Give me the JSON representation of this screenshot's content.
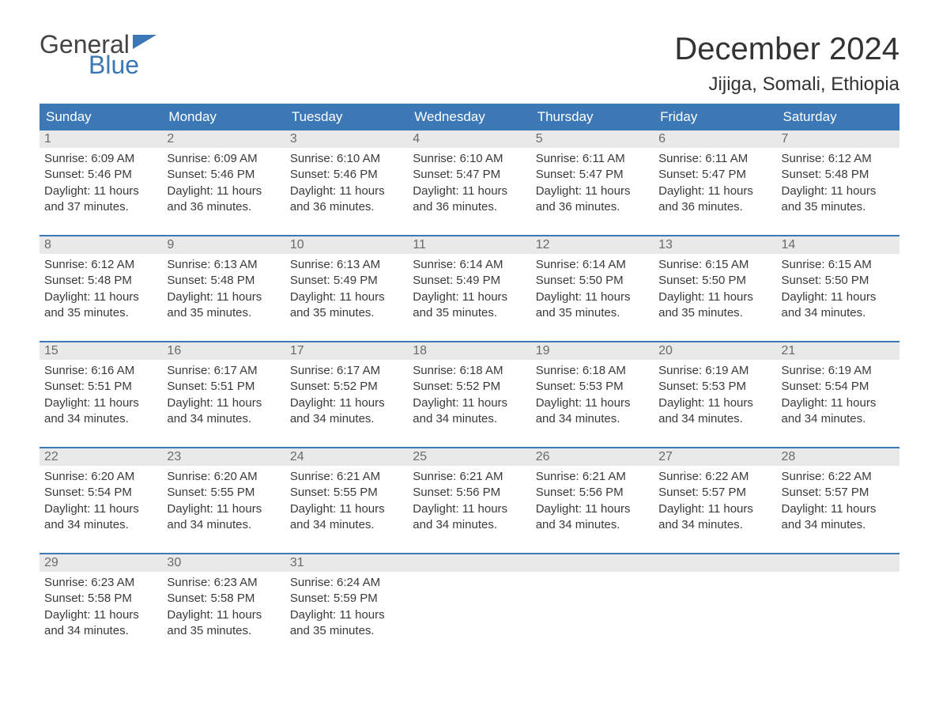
{
  "brand": {
    "word1": "General",
    "word2": "Blue",
    "flag_color": "#3b78b5",
    "word1_color": "#444444",
    "word2_color": "#3b78b5"
  },
  "title": {
    "month": "December 2024",
    "location": "Jijiga, Somali, Ethiopia"
  },
  "colors": {
    "header_bg": "#3b78b5",
    "header_text": "#ffffff",
    "daynum_bg": "#e9e9e9",
    "daynum_text": "#6a6a6a",
    "body_text": "#3a3a3a",
    "week_border": "#3b78b5",
    "page_bg": "#ffffff"
  },
  "day_headers": [
    "Sunday",
    "Monday",
    "Tuesday",
    "Wednesday",
    "Thursday",
    "Friday",
    "Saturday"
  ],
  "weeks": [
    [
      {
        "num": "1",
        "sunrise": "Sunrise: 6:09 AM",
        "sunset": "Sunset: 5:46 PM",
        "day1": "Daylight: 11 hours",
        "day2": "and 37 minutes."
      },
      {
        "num": "2",
        "sunrise": "Sunrise: 6:09 AM",
        "sunset": "Sunset: 5:46 PM",
        "day1": "Daylight: 11 hours",
        "day2": "and 36 minutes."
      },
      {
        "num": "3",
        "sunrise": "Sunrise: 6:10 AM",
        "sunset": "Sunset: 5:46 PM",
        "day1": "Daylight: 11 hours",
        "day2": "and 36 minutes."
      },
      {
        "num": "4",
        "sunrise": "Sunrise: 6:10 AM",
        "sunset": "Sunset: 5:47 PM",
        "day1": "Daylight: 11 hours",
        "day2": "and 36 minutes."
      },
      {
        "num": "5",
        "sunrise": "Sunrise: 6:11 AM",
        "sunset": "Sunset: 5:47 PM",
        "day1": "Daylight: 11 hours",
        "day2": "and 36 minutes."
      },
      {
        "num": "6",
        "sunrise": "Sunrise: 6:11 AM",
        "sunset": "Sunset: 5:47 PM",
        "day1": "Daylight: 11 hours",
        "day2": "and 36 minutes."
      },
      {
        "num": "7",
        "sunrise": "Sunrise: 6:12 AM",
        "sunset": "Sunset: 5:48 PM",
        "day1": "Daylight: 11 hours",
        "day2": "and 35 minutes."
      }
    ],
    [
      {
        "num": "8",
        "sunrise": "Sunrise: 6:12 AM",
        "sunset": "Sunset: 5:48 PM",
        "day1": "Daylight: 11 hours",
        "day2": "and 35 minutes."
      },
      {
        "num": "9",
        "sunrise": "Sunrise: 6:13 AM",
        "sunset": "Sunset: 5:48 PM",
        "day1": "Daylight: 11 hours",
        "day2": "and 35 minutes."
      },
      {
        "num": "10",
        "sunrise": "Sunrise: 6:13 AM",
        "sunset": "Sunset: 5:49 PM",
        "day1": "Daylight: 11 hours",
        "day2": "and 35 minutes."
      },
      {
        "num": "11",
        "sunrise": "Sunrise: 6:14 AM",
        "sunset": "Sunset: 5:49 PM",
        "day1": "Daylight: 11 hours",
        "day2": "and 35 minutes."
      },
      {
        "num": "12",
        "sunrise": "Sunrise: 6:14 AM",
        "sunset": "Sunset: 5:50 PM",
        "day1": "Daylight: 11 hours",
        "day2": "and 35 minutes."
      },
      {
        "num": "13",
        "sunrise": "Sunrise: 6:15 AM",
        "sunset": "Sunset: 5:50 PM",
        "day1": "Daylight: 11 hours",
        "day2": "and 35 minutes."
      },
      {
        "num": "14",
        "sunrise": "Sunrise: 6:15 AM",
        "sunset": "Sunset: 5:50 PM",
        "day1": "Daylight: 11 hours",
        "day2": "and 34 minutes."
      }
    ],
    [
      {
        "num": "15",
        "sunrise": "Sunrise: 6:16 AM",
        "sunset": "Sunset: 5:51 PM",
        "day1": "Daylight: 11 hours",
        "day2": "and 34 minutes."
      },
      {
        "num": "16",
        "sunrise": "Sunrise: 6:17 AM",
        "sunset": "Sunset: 5:51 PM",
        "day1": "Daylight: 11 hours",
        "day2": "and 34 minutes."
      },
      {
        "num": "17",
        "sunrise": "Sunrise: 6:17 AM",
        "sunset": "Sunset: 5:52 PM",
        "day1": "Daylight: 11 hours",
        "day2": "and 34 minutes."
      },
      {
        "num": "18",
        "sunrise": "Sunrise: 6:18 AM",
        "sunset": "Sunset: 5:52 PM",
        "day1": "Daylight: 11 hours",
        "day2": "and 34 minutes."
      },
      {
        "num": "19",
        "sunrise": "Sunrise: 6:18 AM",
        "sunset": "Sunset: 5:53 PM",
        "day1": "Daylight: 11 hours",
        "day2": "and 34 minutes."
      },
      {
        "num": "20",
        "sunrise": "Sunrise: 6:19 AM",
        "sunset": "Sunset: 5:53 PM",
        "day1": "Daylight: 11 hours",
        "day2": "and 34 minutes."
      },
      {
        "num": "21",
        "sunrise": "Sunrise: 6:19 AM",
        "sunset": "Sunset: 5:54 PM",
        "day1": "Daylight: 11 hours",
        "day2": "and 34 minutes."
      }
    ],
    [
      {
        "num": "22",
        "sunrise": "Sunrise: 6:20 AM",
        "sunset": "Sunset: 5:54 PM",
        "day1": "Daylight: 11 hours",
        "day2": "and 34 minutes."
      },
      {
        "num": "23",
        "sunrise": "Sunrise: 6:20 AM",
        "sunset": "Sunset: 5:55 PM",
        "day1": "Daylight: 11 hours",
        "day2": "and 34 minutes."
      },
      {
        "num": "24",
        "sunrise": "Sunrise: 6:21 AM",
        "sunset": "Sunset: 5:55 PM",
        "day1": "Daylight: 11 hours",
        "day2": "and 34 minutes."
      },
      {
        "num": "25",
        "sunrise": "Sunrise: 6:21 AM",
        "sunset": "Sunset: 5:56 PM",
        "day1": "Daylight: 11 hours",
        "day2": "and 34 minutes."
      },
      {
        "num": "26",
        "sunrise": "Sunrise: 6:21 AM",
        "sunset": "Sunset: 5:56 PM",
        "day1": "Daylight: 11 hours",
        "day2": "and 34 minutes."
      },
      {
        "num": "27",
        "sunrise": "Sunrise: 6:22 AM",
        "sunset": "Sunset: 5:57 PM",
        "day1": "Daylight: 11 hours",
        "day2": "and 34 minutes."
      },
      {
        "num": "28",
        "sunrise": "Sunrise: 6:22 AM",
        "sunset": "Sunset: 5:57 PM",
        "day1": "Daylight: 11 hours",
        "day2": "and 34 minutes."
      }
    ],
    [
      {
        "num": "29",
        "sunrise": "Sunrise: 6:23 AM",
        "sunset": "Sunset: 5:58 PM",
        "day1": "Daylight: 11 hours",
        "day2": "and 34 minutes."
      },
      {
        "num": "30",
        "sunrise": "Sunrise: 6:23 AM",
        "sunset": "Sunset: 5:58 PM",
        "day1": "Daylight: 11 hours",
        "day2": "and 35 minutes."
      },
      {
        "num": "31",
        "sunrise": "Sunrise: 6:24 AM",
        "sunset": "Sunset: 5:59 PM",
        "day1": "Daylight: 11 hours",
        "day2": "and 35 minutes."
      },
      {
        "empty": true
      },
      {
        "empty": true
      },
      {
        "empty": true
      },
      {
        "empty": true
      }
    ]
  ]
}
